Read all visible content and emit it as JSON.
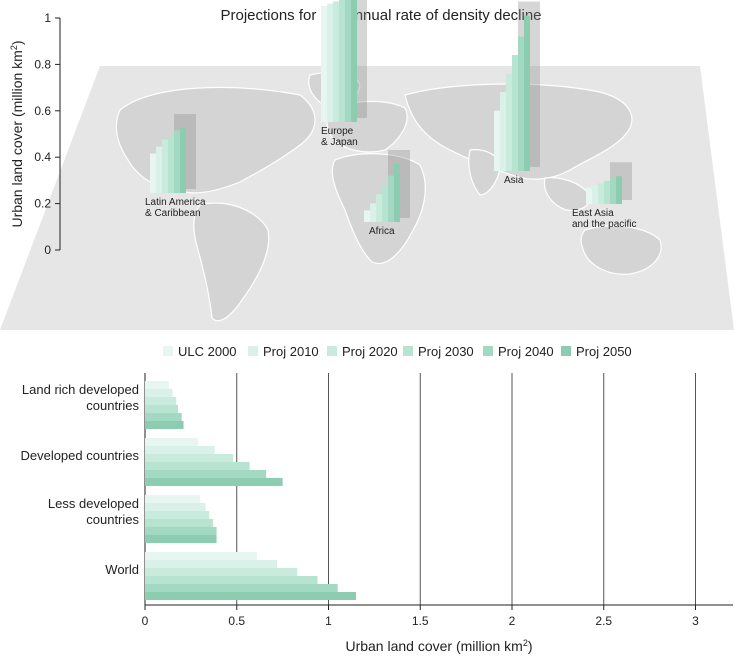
{
  "title": "Projections for 0% annual rate of density decline",
  "colors": {
    "background": "#ffffff",
    "map_land": "#dcdcdc",
    "map_border": "#ffffff",
    "gridline": "#555555",
    "series": [
      "#e8f6f1",
      "#d9f1e8",
      "#c8ebdd",
      "#b7e3d1",
      "#a3d9c3",
      "#8ccdb1"
    ]
  },
  "chart_data": [
    {
      "type": "bar",
      "orientation": "vertical",
      "subtype": "map-inset-bars",
      "ylabel": "Urban land cover (million km",
      "ylabel_sup": "2",
      "ylabel_close": ")",
      "ylim": [
        0,
        1
      ],
      "yticks": [
        "0",
        "0.2",
        "0.4",
        "0.6",
        "0.8",
        "1"
      ],
      "series_names": [
        "ULC 2000",
        "Proj 2010",
        "Proj 2020",
        "Proj 2030",
        "Proj 2040",
        "Proj 2050"
      ],
      "regions": [
        {
          "name": "Latin America\n& Caribbean",
          "values": [
            0.17,
            0.2,
            0.23,
            0.25,
            0.27,
            0.28
          ]
        },
        {
          "name": "Europe\n& Japan",
          "values": [
            0.5,
            0.51,
            0.52,
            0.53,
            0.54,
            0.55
          ]
        },
        {
          "name": "Africa",
          "values": [
            0.05,
            0.08,
            0.12,
            0.16,
            0.2,
            0.25
          ]
        },
        {
          "name": "Asia",
          "values": [
            0.26,
            0.34,
            0.42,
            0.5,
            0.58,
            0.67
          ]
        },
        {
          "name": "East Asia\nand the pacific",
          "values": [
            0.07,
            0.08,
            0.09,
            0.1,
            0.11,
            0.12
          ]
        }
      ]
    },
    {
      "type": "bar",
      "orientation": "horizontal",
      "legend": {
        "position": "top",
        "entries": [
          "ULC 2000",
          "Proj 2010",
          "Proj 2020",
          "Proj 2030",
          "Proj 2040",
          "Proj 2050"
        ]
      },
      "xlabel": "Urban land cover (million km",
      "xlabel_sup": "2",
      "xlabel_close": ")",
      "xlim": [
        0,
        3.25
      ],
      "xticks": [
        "0",
        "0.5",
        "1",
        "1.5",
        "2",
        "2.5",
        "3"
      ],
      "grid": "vertical",
      "categories": [
        "Land rich developed\ncountries",
        "Developed countries",
        "Less developed\ncountries",
        "World"
      ],
      "series": [
        {
          "name": "ULC 2000",
          "values": [
            0.13,
            0.29,
            0.3,
            0.61
          ]
        },
        {
          "name": "Proj 2010",
          "values": [
            0.15,
            0.38,
            0.33,
            0.72
          ]
        },
        {
          "name": "Proj 2020",
          "values": [
            0.17,
            0.48,
            0.35,
            0.83
          ]
        },
        {
          "name": "Proj 2030",
          "values": [
            0.18,
            0.57,
            0.37,
            0.94
          ]
        },
        {
          "name": "Proj 2040",
          "values": [
            0.2,
            0.66,
            0.39,
            1.05
          ]
        },
        {
          "name": "Proj 2050",
          "values": [
            0.21,
            0.75,
            0.39,
            1.15
          ]
        }
      ]
    }
  ]
}
